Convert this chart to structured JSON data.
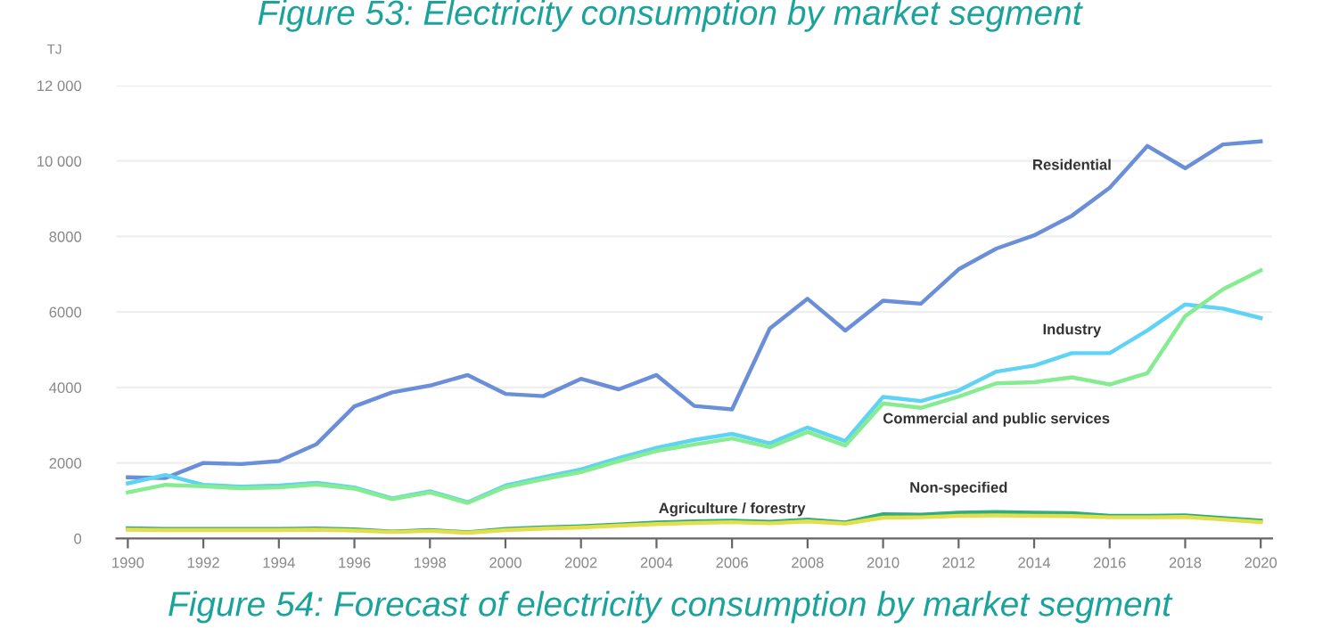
{
  "chart_data": {
    "type": "line",
    "title": "Figure 53: Electricity consumption by market segment",
    "ylabel": "TJ",
    "annotations": [
      "Figure 54: Forecast of electricity consumption by market segment"
    ],
    "x": [
      1990,
      1991,
      1992,
      1993,
      1994,
      1995,
      1996,
      1997,
      1998,
      1999,
      2000,
      2001,
      2002,
      2003,
      2004,
      2005,
      2006,
      2007,
      2008,
      2009,
      2010,
      2011,
      2012,
      2013,
      2014,
      2015,
      2016,
      2017,
      2018,
      2019,
      2020
    ],
    "series": [
      {
        "name": "Residential",
        "color": "#6a8fd8",
        "values": [
          1620,
          1600,
          2000,
          1970,
          2050,
          2500,
          3500,
          3870,
          4050,
          4330,
          3830,
          3770,
          4230,
          3950,
          4330,
          3510,
          3420,
          5560,
          6350,
          5510,
          6300,
          6220,
          7130,
          7680,
          8030,
          8550,
          9290,
          10400,
          9810,
          10440,
          10520
        ]
      },
      {
        "name": "Industry",
        "color": "#5fd3f3",
        "values": [
          1460,
          1680,
          1420,
          1370,
          1400,
          1470,
          1350,
          1060,
          1250,
          960,
          1400,
          1620,
          1830,
          2130,
          2400,
          2610,
          2770,
          2520,
          2940,
          2580,
          3750,
          3640,
          3920,
          4420,
          4580,
          4910,
          4910,
          5510,
          6200,
          6090,
          5840
        ]
      },
      {
        "name": "Commercial and public services",
        "color": "#86ec92",
        "values": [
          1220,
          1420,
          1380,
          1330,
          1350,
          1430,
          1320,
          1040,
          1220,
          940,
          1360,
          1570,
          1760,
          2050,
          2320,
          2490,
          2650,
          2420,
          2820,
          2460,
          3580,
          3460,
          3760,
          4110,
          4140,
          4270,
          4080,
          4380,
          5890,
          6600,
          7100
        ]
      },
      {
        "name": "Agriculture / forestry",
        "color": "#2fae7c",
        "values": [
          270,
          250,
          250,
          250,
          250,
          260,
          240,
          180,
          220,
          160,
          250,
          290,
          320,
          370,
          420,
          450,
          470,
          440,
          500,
          420,
          640,
          630,
          680,
          700,
          680,
          670,
          600,
          600,
          610,
          540,
          470
        ]
      },
      {
        "name": "Non-specified",
        "color": "#e3df4c",
        "values": [
          230,
          220,
          220,
          220,
          220,
          230,
          210,
          170,
          200,
          150,
          220,
          260,
          290,
          340,
          380,
          410,
          430,
          400,
          450,
          390,
          550,
          560,
          600,
          610,
          600,
          590,
          560,
          560,
          570,
          500,
          430
        ]
      }
    ],
    "xlim": [
      1989.7,
      2020.3
    ],
    "xticks": [
      1990,
      1992,
      1994,
      1996,
      1998,
      2000,
      2002,
      2004,
      2006,
      2008,
      2010,
      2012,
      2014,
      2016,
      2018,
      2020
    ],
    "ylim": [
      0,
      12000
    ],
    "yticks": [
      0,
      2000,
      4000,
      6000,
      8000,
      {
        "value": 10000,
        "label": "10 000"
      },
      {
        "value": 12000,
        "label": "12 000"
      }
    ],
    "grid": "y",
    "legend": false,
    "marker": "none",
    "line_style": "solid"
  }
}
